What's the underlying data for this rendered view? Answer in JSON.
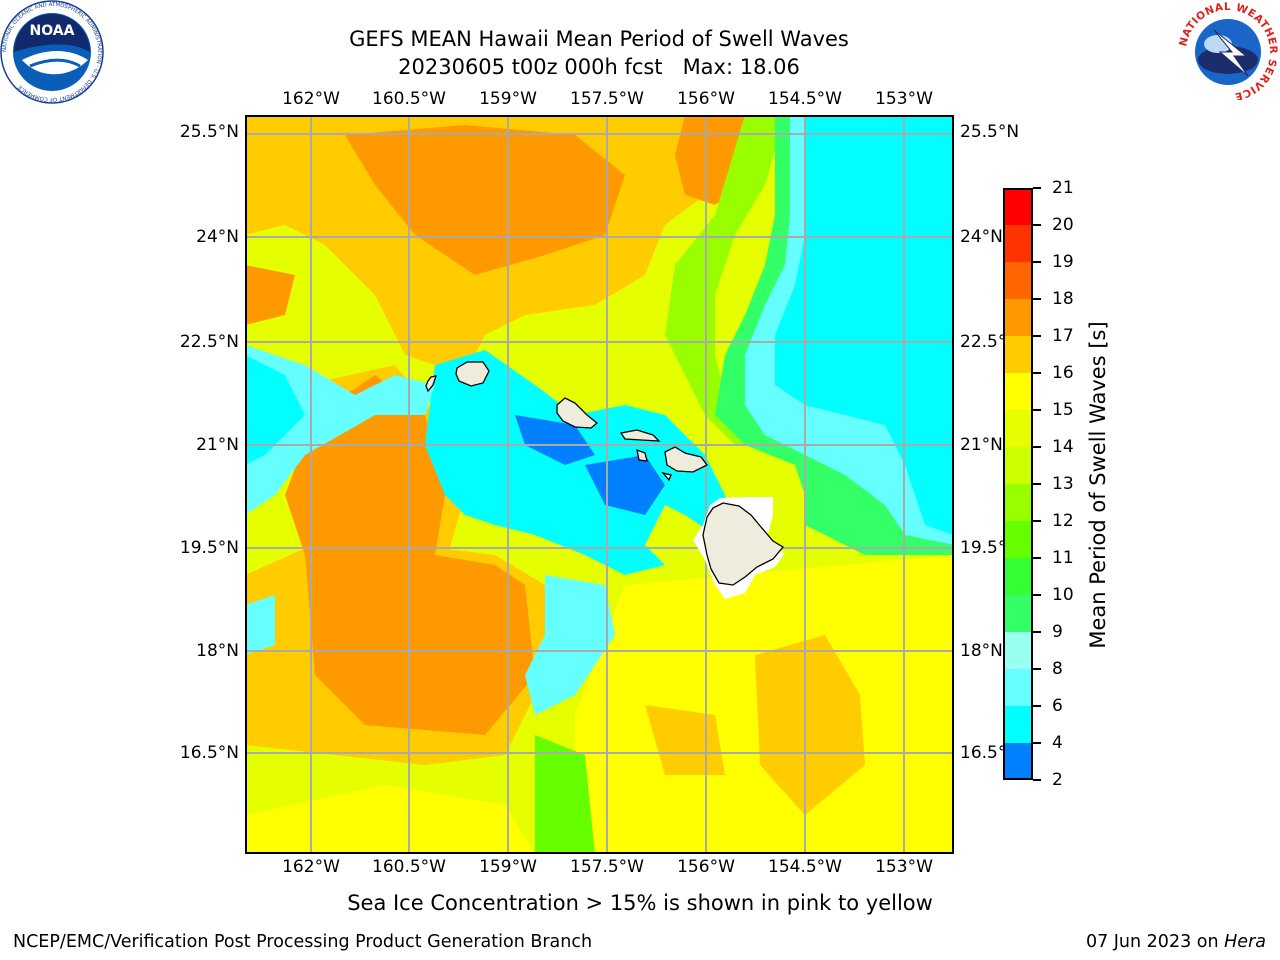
{
  "title": {
    "line1": "GEFS MEAN Hawaii Mean Period of Swell Waves",
    "line2": "20230605 t00z 000h fcst   Max: 18.06"
  },
  "map": {
    "lon_labels": [
      "162°W",
      "160.5°W",
      "159°W",
      "157.5°W",
      "156°W",
      "154.5°W",
      "153°W"
    ],
    "lat_labels": [
      "25.5°N",
      "24°N",
      "22.5°N",
      "21°N",
      "19.5°N",
      "18°N",
      "16.5°N"
    ],
    "grid": true
  },
  "colorbar": {
    "label": "Mean Period of Swell Waves [s]",
    "ticks": [
      "21",
      "20",
      "19",
      "18",
      "17",
      "16",
      "15",
      "14",
      "13",
      "12",
      "11",
      "10",
      "9",
      "8",
      "6",
      "4",
      "2"
    ],
    "colors": [
      "#ff0000",
      "#ff3300",
      "#ff6600",
      "#ff9900",
      "#ffcc00",
      "#ffff00",
      "#e6ff00",
      "#ccff00",
      "#99ff00",
      "#66ff00",
      "#33ff33",
      "#33ff66",
      "#99ffee",
      "#66ffff",
      "#00ffff",
      "#0080ff",
      "#0000ff"
    ]
  },
  "caption": "Sea Ice Concentration > 15% is shown in pink to yellow",
  "footer": {
    "left": "NCEP/EMC/Verification Post Processing Product Generation Branch",
    "right_date": "07 Jun 2023 on ",
    "right_host": "Hera"
  },
  "logos": {
    "noaa_text": "NOAA",
    "noaa_ring": "NATIONAL OCEANIC AND ATMOSPHERIC ADMINISTRATION · U.S. DEPARTMENT OF COMMERCE",
    "nws_ring": "NATIONAL WEATHER SERVICE"
  }
}
